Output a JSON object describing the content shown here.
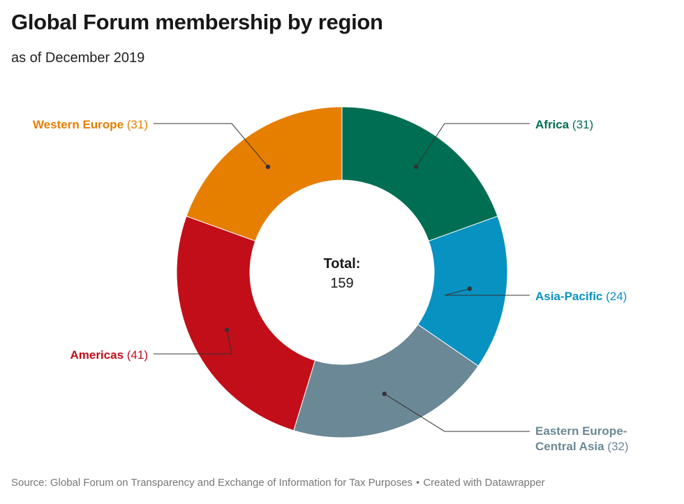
{
  "header": {
    "title": "Global Forum membership by region",
    "subtitle": "as of December 2019"
  },
  "center": {
    "label": "Total:",
    "value": "159"
  },
  "footer": {
    "source": "Source: Global Forum on Transparency and Exchange of Information for Tax Purposes",
    "separator": "•",
    "credit": "Created with Datawrapper"
  },
  "chart_data": {
    "type": "pie",
    "variant": "donut",
    "title": "Global Forum membership by region",
    "subtitle": "as of December 2019",
    "center_label": "Total:",
    "total": 159,
    "legend": "none",
    "slices": [
      {
        "name": "Africa",
        "label": "Africa",
        "value": 31,
        "value_text": "(31)",
        "color": "#006e52",
        "side": "right"
      },
      {
        "name": "Asia-Pacific",
        "label": "Asia-Pacific",
        "value": 24,
        "value_text": "(24)",
        "color": "#0792c2",
        "side": "right"
      },
      {
        "name": "Eastern Europe-Central Asia",
        "label_lines": [
          "Eastern Europe-",
          "Central Asia"
        ],
        "value": 32,
        "value_text": "(32)",
        "color": "#6b8896",
        "side": "right"
      },
      {
        "name": "Americas",
        "label": "Americas",
        "value": 41,
        "value_text": "(41)",
        "color": "#c10e18",
        "side": "left"
      },
      {
        "name": "Western Europe",
        "label": "Western Europe",
        "value": 31,
        "value_text": "(31)",
        "color": "#e67e00",
        "side": "left"
      }
    ]
  }
}
